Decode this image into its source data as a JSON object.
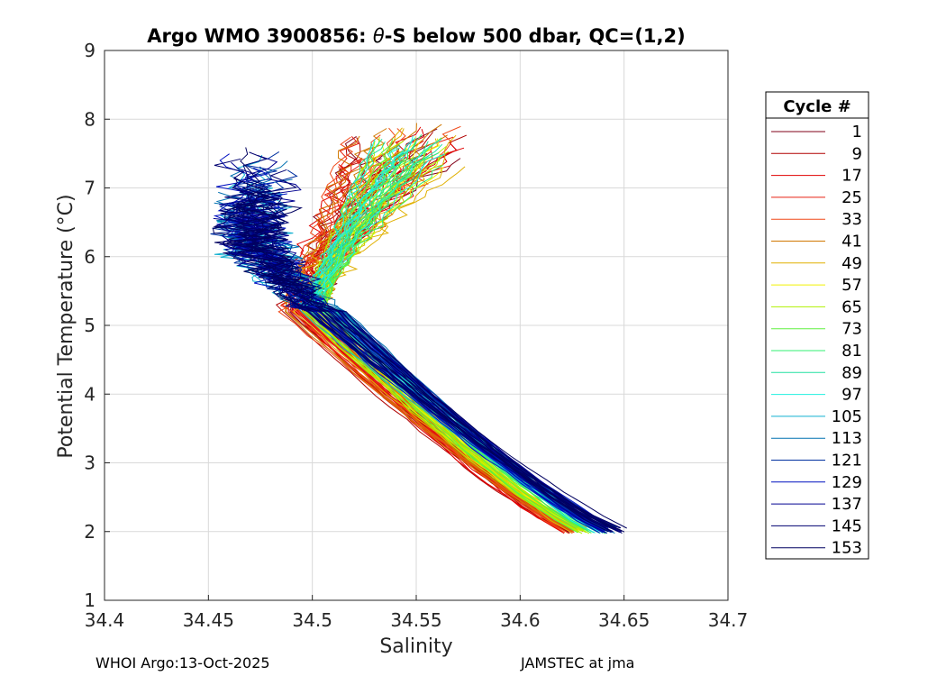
{
  "chart_data": {
    "type": "line",
    "title": "Argo WMO 3900856: θ-S below 500 dbar,  QC=(1,2)",
    "title_parts": {
      "prefix": "Argo WMO 3900856: ",
      "theta": "θ",
      "suffix": "-S below 500 dbar,  QC=(1,2)"
    },
    "xlabel": "Salinity",
    "ylabel": "Potential Temperature (°C)",
    "xlim": [
      34.4,
      34.7
    ],
    "ylim": [
      1,
      9
    ],
    "xticks": [
      34.4,
      34.45,
      34.5,
      34.55,
      34.6,
      34.65,
      34.7
    ],
    "xtick_labels": [
      "34.4",
      "34.45",
      "34.5",
      "34.55",
      "34.6",
      "34.65",
      "34.7"
    ],
    "yticks": [
      1,
      2,
      3,
      4,
      5,
      6,
      7,
      8,
      9
    ],
    "ytick_labels": [
      "1",
      "2",
      "3",
      "4",
      "5",
      "6",
      "7",
      "8",
      "9"
    ],
    "grid": true,
    "legend": {
      "title": "Cycle #",
      "placement": "right-outside",
      "entries": [
        {
          "label": "1",
          "color": "#80001a"
        },
        {
          "label": "9",
          "color": "#b00000"
        },
        {
          "label": "17",
          "color": "#e00000"
        },
        {
          "label": "25",
          "color": "#e82010"
        },
        {
          "label": "33",
          "color": "#f04818"
        },
        {
          "label": "41",
          "color": "#d07800"
        },
        {
          "label": "49",
          "color": "#e0b000"
        },
        {
          "label": "57",
          "color": "#f0f000"
        },
        {
          "label": "65",
          "color": "#b0f000"
        },
        {
          "label": "73",
          "color": "#60f040"
        },
        {
          "label": "81",
          "color": "#30f070"
        },
        {
          "label": "89",
          "color": "#20e0a0"
        },
        {
          "label": "97",
          "color": "#20f0e0"
        },
        {
          "label": "105",
          "color": "#10b0d0"
        },
        {
          "label": "113",
          "color": "#0070b0"
        },
        {
          "label": "121",
          "color": "#0030a0"
        },
        {
          "label": "129",
          "color": "#0010c0"
        },
        {
          "label": "137",
          "color": "#000090"
        },
        {
          "label": "145",
          "color": "#000070"
        },
        {
          "label": "153",
          "color": "#000060"
        }
      ]
    },
    "profile_shape": {
      "description_values": "theta-S profile per cycle, salinity vs potential temperature",
      "deep_end": {
        "s": 34.64,
        "t": 1.97
      },
      "knee": {
        "s": 34.5,
        "t": 5.2
      },
      "upper_groups": [
        {
          "color_range": "red",
          "s_top": 34.57,
          "t_top": 7.9
        },
        {
          "color_range": "green",
          "s_top": 34.56,
          "t_top": 7.8
        },
        {
          "color_range": "blue",
          "s_top": 34.47,
          "t_top": 7.4
        }
      ]
    }
  },
  "footer": {
    "left": "WHOI Argo:13-Oct-2025",
    "right": "JAMSTEC at jma"
  }
}
